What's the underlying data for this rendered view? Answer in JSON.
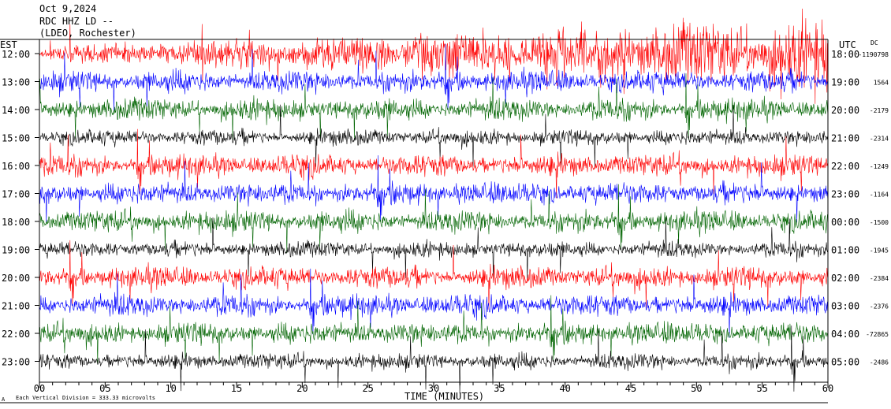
{
  "header": {
    "date": "Oct 9,2024",
    "station": "RDC HHZ LD --",
    "network": "(LDEO, Rochester)"
  },
  "chart_data": {
    "type": "line",
    "title": "",
    "left_axis_label": "EST",
    "right_axis_label": "UTC",
    "dc_label": "DC",
    "xlabel": "TIME (MINUTES)",
    "xlim": [
      0,
      60
    ],
    "x_ticks": [
      "00",
      "05",
      "10",
      "15",
      "20",
      "25",
      "30",
      "35",
      "40",
      "45",
      "50",
      "55",
      "60"
    ],
    "footer_note": "Each Vertical Division = 333.33 microvolts",
    "rows": [
      {
        "est": "12:00",
        "utc": "18:00",
        "dc": "-1190798",
        "color": "#ff0000"
      },
      {
        "est": "13:00",
        "utc": "19:00",
        "dc": "1564",
        "color": "#0000ff"
      },
      {
        "est": "14:00",
        "utc": "20:00",
        "dc": "-2179",
        "color": "#006400"
      },
      {
        "est": "15:00",
        "utc": "21:00",
        "dc": "-2314",
        "color": "#000000"
      },
      {
        "est": "16:00",
        "utc": "22:00",
        "dc": "-1249",
        "color": "#ff0000"
      },
      {
        "est": "17:00",
        "utc": "23:00",
        "dc": "-1164",
        "color": "#0000ff"
      },
      {
        "est": "18:00",
        "utc": "00:00",
        "dc": "-1500",
        "color": "#006400"
      },
      {
        "est": "19:00",
        "utc": "01:00",
        "dc": "-1945",
        "color": "#000000"
      },
      {
        "est": "20:00",
        "utc": "02:00",
        "dc": "-2384",
        "color": "#ff0000"
      },
      {
        "est": "21:00",
        "utc": "03:00",
        "dc": "-2376",
        "color": "#0000ff"
      },
      {
        "est": "22:00",
        "utc": "04:00",
        "dc": "-72865",
        "color": "#006400"
      },
      {
        "est": "23:00",
        "utc": "05:00",
        "dc": "-2486",
        "color": "#000000"
      }
    ],
    "grid": false,
    "legend": "none"
  }
}
